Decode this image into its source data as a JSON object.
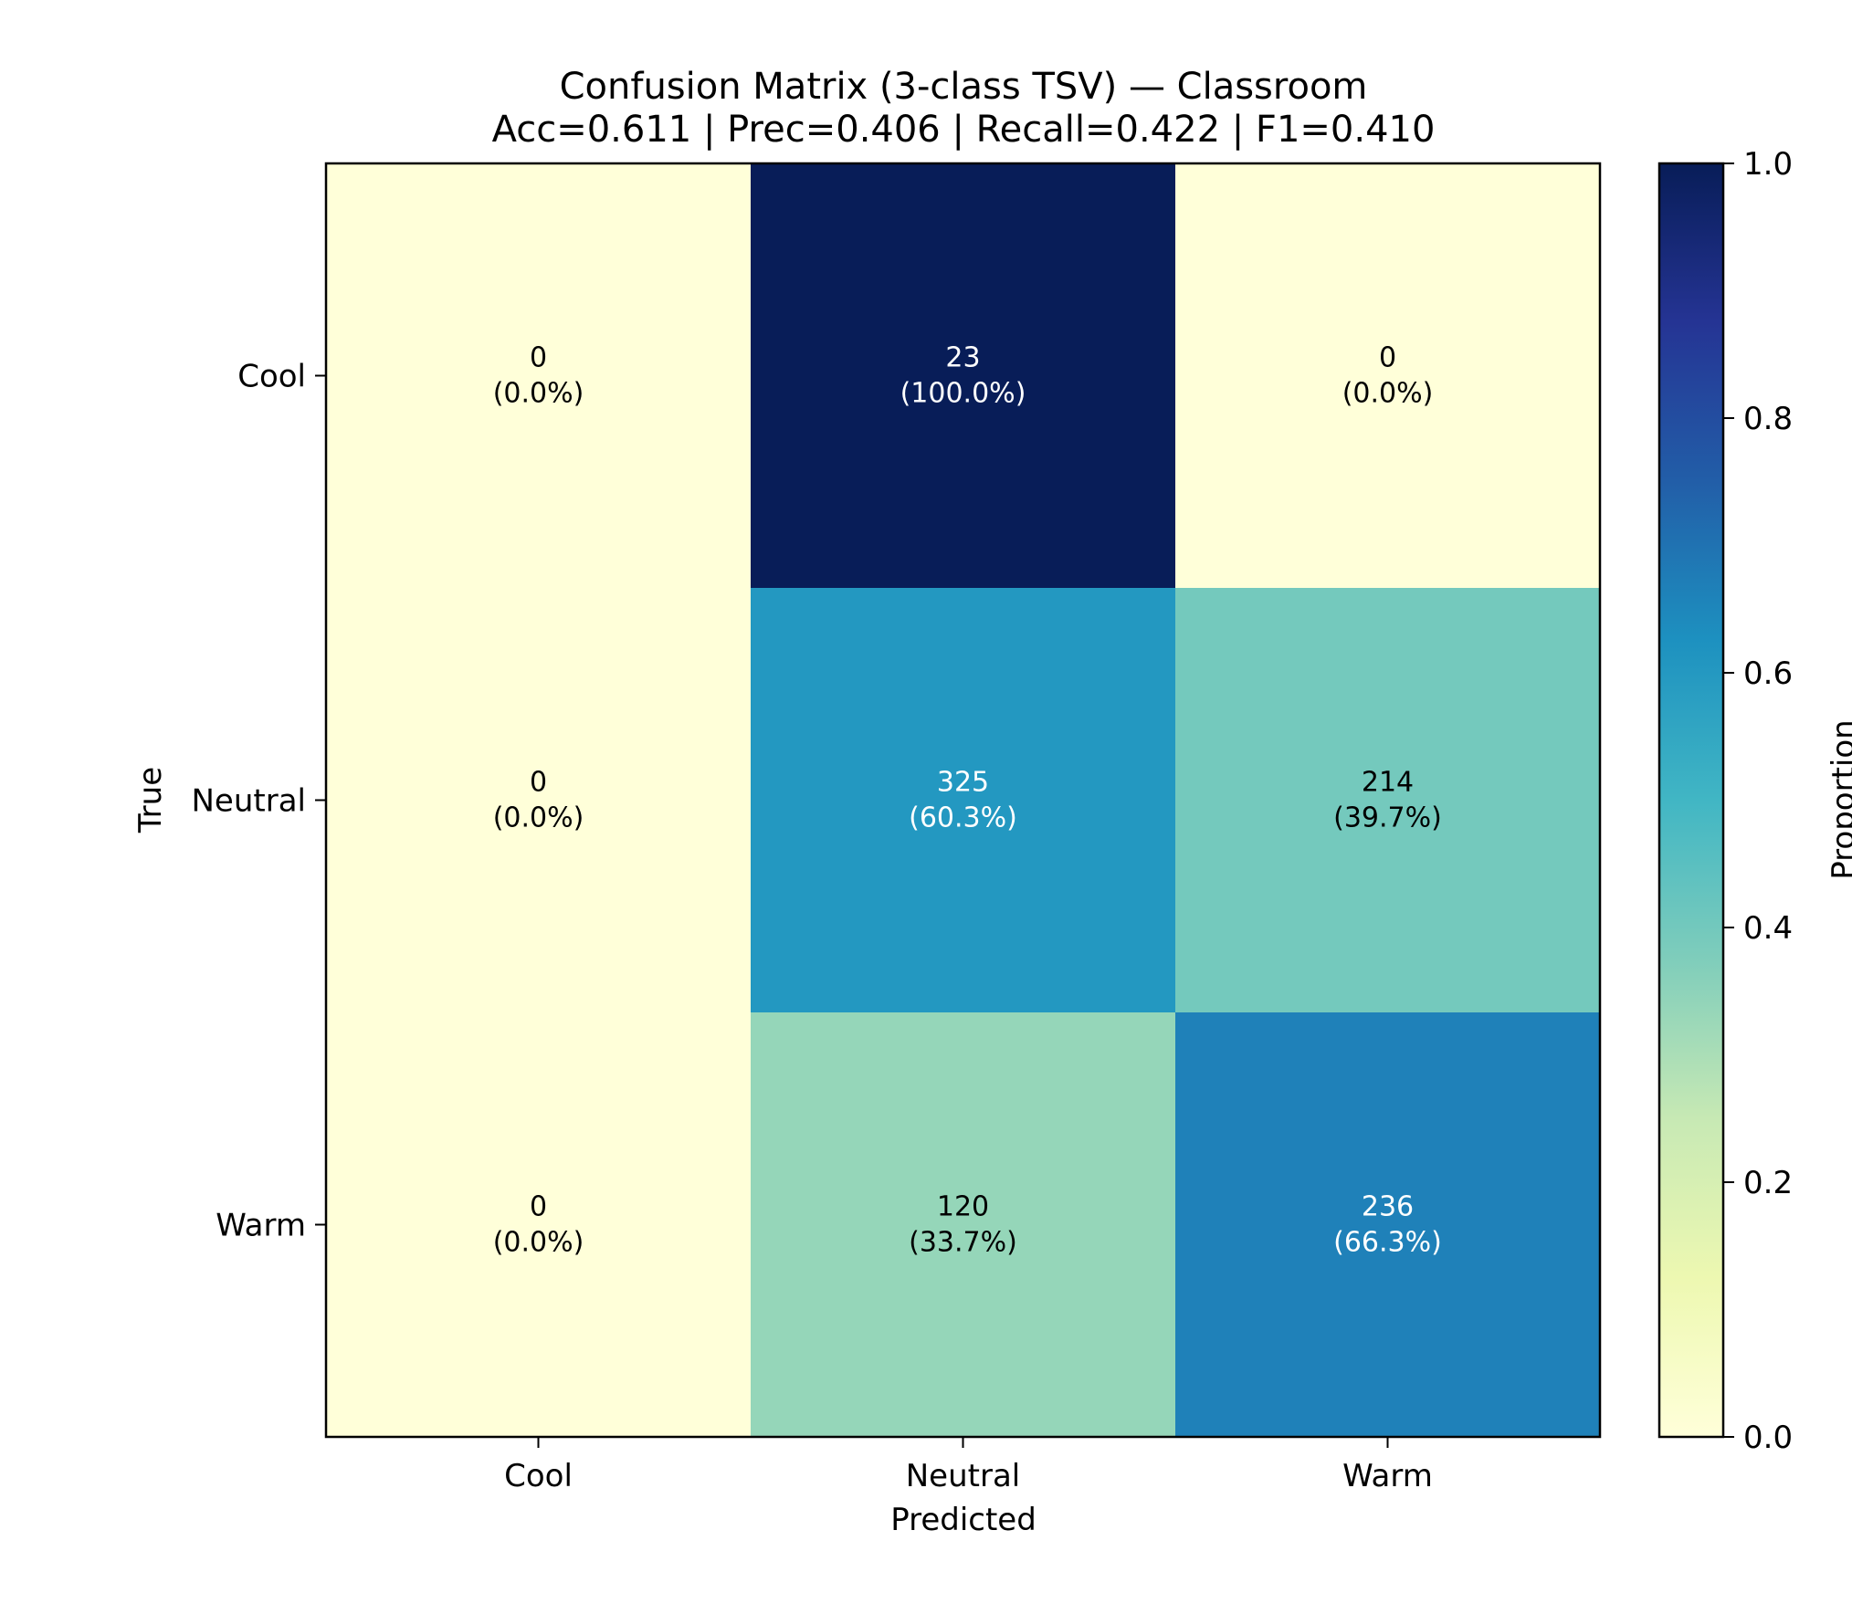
{
  "chart_data": {
    "type": "heatmap",
    "title": "Confusion Matrix (3-class TSV) — Classroom",
    "subtitle": "Acc=0.611 | Prec=0.406 | Recall=0.422 | F1=0.410",
    "xlabel": "Predicted",
    "ylabel": "True",
    "x_categories": [
      "Cool",
      "Neutral",
      "Warm"
    ],
    "y_categories": [
      "Cool",
      "Neutral",
      "Warm"
    ],
    "counts": [
      [
        0,
        23,
        0
      ],
      [
        0,
        325,
        214
      ],
      [
        0,
        120,
        236
      ]
    ],
    "proportions": [
      [
        0.0,
        1.0,
        0.0
      ],
      [
        0.0,
        0.603,
        0.397
      ],
      [
        0.0,
        0.337,
        0.663
      ]
    ],
    "cell_labels": [
      [
        {
          "count": "0",
          "pct": "(0.0%)"
        },
        {
          "count": "23",
          "pct": "(100.0%)"
        },
        {
          "count": "0",
          "pct": "(0.0%)"
        }
      ],
      [
        {
          "count": "0",
          "pct": "(0.0%)"
        },
        {
          "count": "325",
          "pct": "(60.3%)"
        },
        {
          "count": "214",
          "pct": "(39.7%)"
        }
      ],
      [
        {
          "count": "0",
          "pct": "(0.0%)"
        },
        {
          "count": "120",
          "pct": "(33.7%)"
        },
        {
          "count": "236",
          "pct": "(66.3%)"
        }
      ]
    ],
    "colorbar": {
      "label": "Proportion",
      "range": [
        0,
        1
      ],
      "ticks": [
        "0.0",
        "0.2",
        "0.4",
        "0.6",
        "0.8",
        "1.0"
      ],
      "colormap": [
        "#ffffd9",
        "#edf8b1",
        "#c7e9b4",
        "#7fcdbb",
        "#41b6c4",
        "#1d91c0",
        "#225ea8",
        "#253494",
        "#081d58"
      ]
    },
    "text_colors": {
      "light": "#ffffff",
      "dark": "#000000"
    }
  }
}
